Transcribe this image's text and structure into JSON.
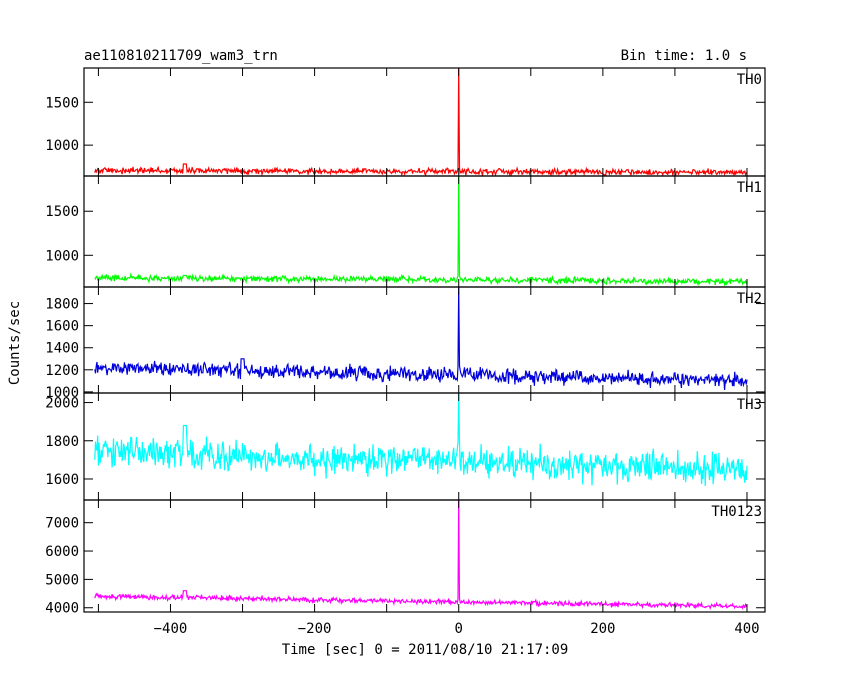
{
  "chart_data": {
    "type": "line",
    "title_left": "ae110810211709_wam3_trn",
    "title_right": "Bin time: 1.0 s",
    "xlabel": "Time [sec] 0 = 2011/08/10 21:17:09",
    "ylabel": "Counts/sec",
    "xlim": [
      -520,
      425
    ],
    "x_ticks": [
      -400,
      -200,
      0,
      200,
      400
    ],
    "x_tick_labels": [
      "−400",
      "−200",
      "0",
      "200",
      "400"
    ],
    "x_range": [
      -505,
      400
    ],
    "grid": false,
    "panels": [
      {
        "name": "TH0",
        "color": "#ff0000",
        "ylim": [
          640,
          1900
        ],
        "yticks": [
          1000,
          1500
        ],
        "ytick_labels": [
          "1000",
          "1500"
        ],
        "baseline_start": 705,
        "baseline_end": 680,
        "noise": 25,
        "peak": 1900,
        "bump": {
          "x": -380,
          "value": 780
        }
      },
      {
        "name": "TH1",
        "color": "#00ff00",
        "ylim": [
          640,
          1900
        ],
        "yticks": [
          1000,
          1500
        ],
        "ytick_labels": [
          "1000",
          "1500"
        ],
        "baseline_start": 745,
        "baseline_end": 700,
        "noise": 25,
        "peak": 1900,
        "bump": {
          "x": -380,
          "value": 770
        }
      },
      {
        "name": "TH2",
        "color": "#0000dd",
        "ylim": [
          990,
          1950
        ],
        "yticks": [
          1000,
          1200,
          1400,
          1600,
          1800
        ],
        "ytick_labels": [
          "1000",
          "1200",
          "1400",
          "1600",
          "1800"
        ],
        "baseline_start": 1220,
        "baseline_end": 1100,
        "noise": 45,
        "peak": 1950,
        "bump": {
          "x": -300,
          "value": 1300
        }
      },
      {
        "name": "TH3",
        "color": "#00ffff",
        "ylim": [
          1490,
          2050
        ],
        "yticks": [
          1600,
          1800,
          2000
        ],
        "ytick_labels": [
          "1600",
          "1800",
          "2000"
        ],
        "baseline_start": 1740,
        "baseline_end": 1650,
        "noise": 55,
        "peak": 2050,
        "bump": {
          "x": -380,
          "value": 1880
        }
      },
      {
        "name": "TH0123",
        "color": "#ff00ff",
        "ylim": [
          3850,
          7800
        ],
        "yticks": [
          4000,
          5000,
          6000,
          7000
        ],
        "ytick_labels": [
          "4000",
          "5000",
          "6000",
          "7000"
        ],
        "baseline_start": 4400,
        "baseline_end": 4050,
        "noise": 60,
        "peak": 7800,
        "bump": {
          "x": -380,
          "value": 4600
        }
      }
    ]
  }
}
